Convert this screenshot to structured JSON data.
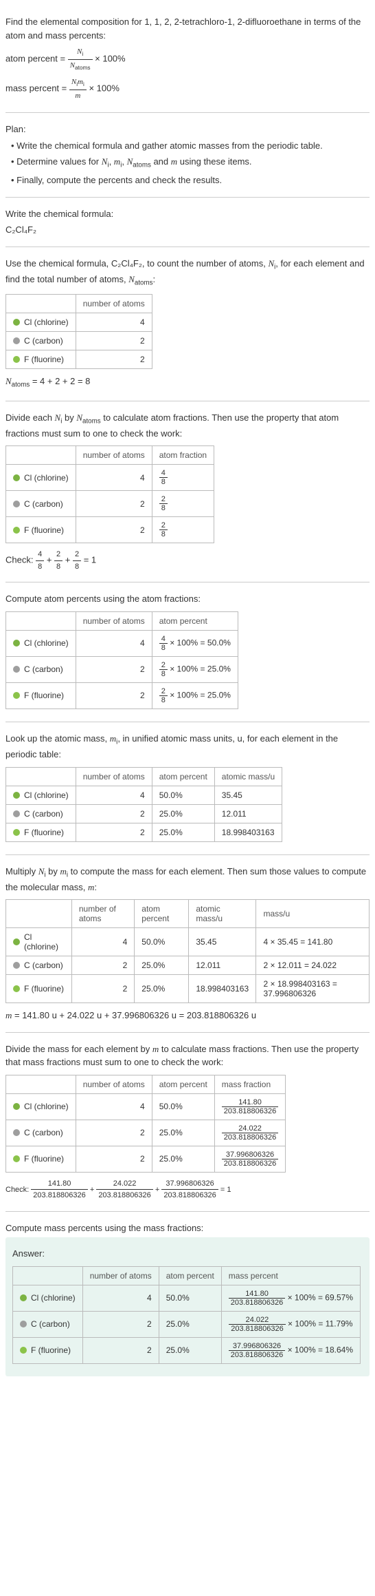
{
  "intro": {
    "title": "Find the elemental composition for 1, 1, 2, 2-tetrachloro-1, 2-difluoroethane in terms of the atom and mass percents:",
    "atom_percent_label": "atom percent = ",
    "atom_percent_num": "N",
    "atom_percent_num_sub": "i",
    "atom_percent_den": "N",
    "atom_percent_den_sub": "atoms",
    "times100": " × 100%",
    "mass_percent_label": "mass percent = ",
    "mass_percent_num": "N",
    "mass_percent_num_sub": "i",
    "mass_percent_num2": "m",
    "mass_percent_num2_sub": "i",
    "mass_percent_den": "m"
  },
  "plan": {
    "heading": "Plan:",
    "b1": "• Write the chemical formula and gather atomic masses from the periodic table.",
    "b2_a": "• Determine values for ",
    "b2_b": "N",
    "b2_b_sub": "i",
    "b2_c": ", ",
    "b2_d": "m",
    "b2_d_sub": "i",
    "b2_e": ", ",
    "b2_f": "N",
    "b2_f_sub": "atoms",
    "b2_g": " and ",
    "b2_h": "m",
    "b2_i": " using these items.",
    "b3": "• Finally, compute the percents and check the results."
  },
  "formula_section": {
    "heading": "Write the chemical formula:",
    "formula": "C₂Cl₄F₂"
  },
  "count_section": {
    "text_a": "Use the chemical formula, C₂Cl₄F₂, to count the number of atoms, ",
    "ni": "N",
    "ni_sub": "i",
    "text_b": ", for each element and find the total number of atoms, ",
    "na": "N",
    "na_sub": "atoms",
    "text_c": ":",
    "headers": [
      "",
      "number of atoms"
    ],
    "rows": [
      {
        "color": "#7cb342",
        "name": "Cl (chlorine)",
        "atoms": "4"
      },
      {
        "color": "#9e9e9e",
        "name": "C (carbon)",
        "atoms": "2"
      },
      {
        "color": "#8bc34a",
        "name": "F (fluorine)",
        "atoms": "2"
      }
    ],
    "sum_a": "N",
    "sum_a_sub": "atoms",
    "sum_b": " = 4 + 2 + 2 = 8"
  },
  "atom_fractions": {
    "text_a": "Divide each ",
    "ni": "N",
    "ni_sub": "i",
    "text_b": " by ",
    "na": "N",
    "na_sub": "atoms",
    "text_c": " to calculate atom fractions. Then use the property that atom fractions must sum to one to check the work:",
    "headers": [
      "",
      "number of atoms",
      "atom fraction"
    ],
    "rows": [
      {
        "color": "#7cb342",
        "name": "Cl (chlorine)",
        "atoms": "4",
        "frac_n": "4",
        "frac_d": "8"
      },
      {
        "color": "#9e9e9e",
        "name": "C (carbon)",
        "atoms": "2",
        "frac_n": "2",
        "frac_d": "8"
      },
      {
        "color": "#8bc34a",
        "name": "F (fluorine)",
        "atoms": "2",
        "frac_n": "2",
        "frac_d": "8"
      }
    ],
    "check_label": "Check: ",
    "check_f1n": "4",
    "check_f1d": "8",
    "check_p1": " + ",
    "check_f2n": "2",
    "check_f2d": "8",
    "check_p2": " + ",
    "check_f3n": "2",
    "check_f3d": "8",
    "check_eq": " = 1"
  },
  "atom_percents": {
    "heading": "Compute atom percents using the atom fractions:",
    "headers": [
      "",
      "number of atoms",
      "atom percent"
    ],
    "rows": [
      {
        "color": "#7cb342",
        "name": "Cl (chlorine)",
        "atoms": "4",
        "fn": "4",
        "fd": "8",
        "result": " × 100% = 50.0%"
      },
      {
        "color": "#9e9e9e",
        "name": "C (carbon)",
        "atoms": "2",
        "fn": "2",
        "fd": "8",
        "result": " × 100% = 25.0%"
      },
      {
        "color": "#8bc34a",
        "name": "F (fluorine)",
        "atoms": "2",
        "fn": "2",
        "fd": "8",
        "result": " × 100% = 25.0%"
      }
    ]
  },
  "atomic_mass": {
    "text_a": "Look up the atomic mass, ",
    "mi": "m",
    "mi_sub": "i",
    "text_b": ", in unified atomic mass units, u, for each element in the periodic table:",
    "headers": [
      "",
      "number of atoms",
      "atom percent",
      "atomic mass/u"
    ],
    "rows": [
      {
        "color": "#7cb342",
        "name": "Cl (chlorine)",
        "atoms": "4",
        "pct": "50.0%",
        "mass": "35.45"
      },
      {
        "color": "#9e9e9e",
        "name": "C (carbon)",
        "atoms": "2",
        "pct": "25.0%",
        "mass": "12.011"
      },
      {
        "color": "#8bc34a",
        "name": "F (fluorine)",
        "atoms": "2",
        "pct": "25.0%",
        "mass": "18.998403163"
      }
    ]
  },
  "molecular_mass": {
    "text_a": "Multiply ",
    "ni": "N",
    "ni_sub": "i",
    "text_b": " by ",
    "mi": "m",
    "mi_sub": "i",
    "text_c": " to compute the mass for each element. Then sum those values to compute the molecular mass, ",
    "m": "m",
    "text_d": ":",
    "headers": [
      "",
      "number of atoms",
      "atom percent",
      "atomic mass/u",
      "mass/u"
    ],
    "rows": [
      {
        "color": "#7cb342",
        "name": "Cl (chlorine)",
        "atoms": "4",
        "pct": "50.0%",
        "mass": "35.45",
        "calc": "4 × 35.45 = 141.80"
      },
      {
        "color": "#9e9e9e",
        "name": "C (carbon)",
        "atoms": "2",
        "pct": "25.0%",
        "mass": "12.011",
        "calc": "2 × 12.011 = 24.022"
      },
      {
        "color": "#8bc34a",
        "name": "F (fluorine)",
        "atoms": "2",
        "pct": "25.0%",
        "mass": "18.998403163",
        "calc": "2 × 18.998403163 = 37.996806326"
      }
    ],
    "sum_a": "m",
    "sum_b": " = 141.80 u + 24.022 u + 37.996806326 u = 203.818806326 u"
  },
  "mass_fractions": {
    "text_a": "Divide the mass for each element by ",
    "m": "m",
    "text_b": " to calculate mass fractions. Then use the property that mass fractions must sum to one to check the work:",
    "headers": [
      "",
      "number of atoms",
      "atom percent",
      "mass fraction"
    ],
    "rows": [
      {
        "color": "#7cb342",
        "name": "Cl (chlorine)",
        "atoms": "4",
        "pct": "50.0%",
        "fn": "141.80",
        "fd": "203.818806326"
      },
      {
        "color": "#9e9e9e",
        "name": "C (carbon)",
        "atoms": "2",
        "pct": "25.0%",
        "fn": "24.022",
        "fd": "203.818806326"
      },
      {
        "color": "#8bc34a",
        "name": "F (fluorine)",
        "atoms": "2",
        "pct": "25.0%",
        "fn": "37.996806326",
        "fd": "203.818806326"
      }
    ],
    "check_label": "Check: ",
    "check_f1n": "141.80",
    "check_f1d": "203.818806326",
    "check_p1": " + ",
    "check_f2n": "24.022",
    "check_f2d": "203.818806326",
    "check_p2": " + ",
    "check_f3n": "37.996806326",
    "check_f3d": "203.818806326",
    "check_eq": " = 1"
  },
  "answer_section": {
    "heading": "Compute mass percents using the mass fractions:",
    "answer_label": "Answer:",
    "headers": [
      "",
      "number of atoms",
      "atom percent",
      "mass percent"
    ],
    "rows": [
      {
        "color": "#7cb342",
        "name": "Cl (chlorine)",
        "atoms": "4",
        "pct": "50.0%",
        "fn": "141.80",
        "fd": "203.818806326",
        "result": " × 100% = 69.57%"
      },
      {
        "color": "#9e9e9e",
        "name": "C (carbon)",
        "atoms": "2",
        "pct": "25.0%",
        "fn": "24.022",
        "fd": "203.818806326",
        "result": " × 100% = 11.79%"
      },
      {
        "color": "#8bc34a",
        "name": "F (fluorine)",
        "atoms": "2",
        "pct": "25.0%",
        "fn": "37.996806326",
        "fd": "203.818806326",
        "result": " × 100% = 18.64%"
      }
    ]
  }
}
